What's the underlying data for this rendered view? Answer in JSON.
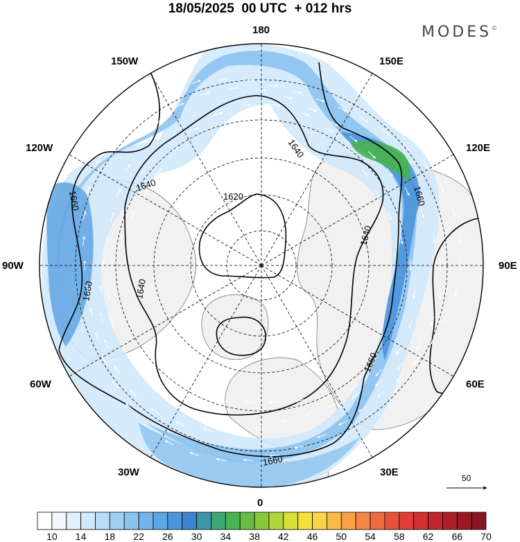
{
  "title": "18/05/2025  00 UTC  + 012 hrs",
  "brand": "MODES",
  "brand_mark": "©",
  "longitude_labels": {
    "lon_180": "180",
    "lon_150e": "150E",
    "lon_120e": "120E",
    "lon_90e": "90E",
    "lon_60e": "60E",
    "lon_30e": "30E",
    "lon_0": "0",
    "lon_30w": "30W",
    "lon_60w": "60W",
    "lon_90w": "90W",
    "lon_120w": "120W",
    "lon_150w": "150W"
  },
  "contour_labels": [
    "1620",
    "1640",
    "1640",
    "1640",
    "1640",
    "1660",
    "1660",
    "1660",
    "1660",
    "1660"
  ],
  "reference_vector_label": "50",
  "legend": {
    "tick_labels": [
      "10",
      "14",
      "18",
      "22",
      "26",
      "30",
      "34",
      "38",
      "42",
      "46",
      "50",
      "54",
      "58",
      "62",
      "66",
      "70"
    ],
    "colors": [
      "#ffffff",
      "#f3f7fd",
      "#e2f0fc",
      "#cfe8fa",
      "#b8dcf7",
      "#a2d0f3",
      "#8cc3ef",
      "#75b4ea",
      "#5fa4e3",
      "#4c94db",
      "#3b84d0",
      "#3d95a8",
      "#3fa776",
      "#49b350",
      "#67bd42",
      "#8bc73e",
      "#b2d43c",
      "#d9df3b",
      "#f2e23f",
      "#f9d348",
      "#f9bb4a",
      "#f7a04a",
      "#f38546",
      "#ee6a41",
      "#e8523c",
      "#de3d36",
      "#d12f31",
      "#c1262c",
      "#ad1f29",
      "#9b1a25",
      "#871722"
    ]
  },
  "colors": {
    "land_fill": "#f1f1f1",
    "ocean": "#ffffff",
    "contour": "#000000"
  }
}
